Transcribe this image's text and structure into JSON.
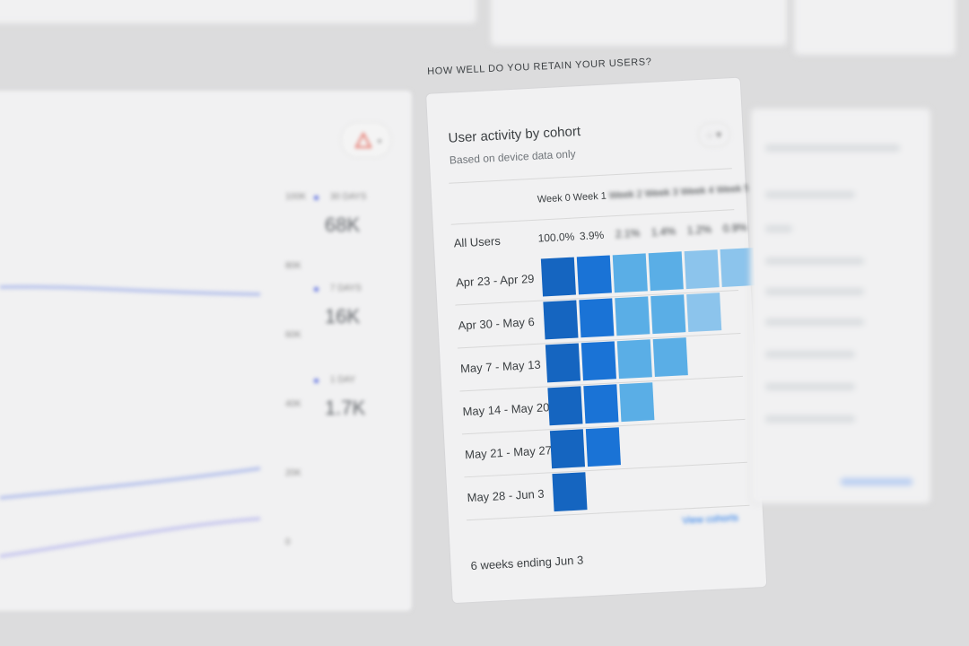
{
  "section_title": "HOW WELL DO YOU RETAIN YOUR USERS?",
  "cohort_card": {
    "title": "User activity by cohort",
    "subtitle": "Based on device data only",
    "device_icon": "device-selector-icon",
    "week_headers": [
      "Week 0",
      "Week 1",
      "Week 2",
      "Week 3",
      "Week 4",
      "Week 5"
    ],
    "all_users": {
      "label": "All Users",
      "values": [
        "100.0%",
        "3.9%",
        "2.1%",
        "1.4%",
        "1.2%",
        "0.9%"
      ]
    },
    "rows": [
      {
        "label": "Apr 23 - Apr 29",
        "cells": 6
      },
      {
        "label": "Apr 30 - May 6",
        "cells": 5
      },
      {
        "label": "May 7 - May 13",
        "cells": 4
      },
      {
        "label": "May 14 - May 20",
        "cells": 3
      },
      {
        "label": "May 21 - May 27",
        "cells": 2
      },
      {
        "label": "May 28 - Jun 3",
        "cells": 1
      }
    ],
    "cell_colors": [
      "#1565c0",
      "#1a73d6",
      "#5aaee6",
      "#5aaee6",
      "#8cc4ec",
      "#8cc4ec"
    ],
    "footer": "6 weeks ending Jun 3",
    "view_link": "View cohorts"
  },
  "active_users_card": {
    "warning_icon": "warning-triangle-icon",
    "y_ticks": [
      "100K",
      "80K",
      "60K",
      "40K",
      "20K",
      "0"
    ],
    "legend": [
      {
        "label": "30 DAYS",
        "value": "68K"
      },
      {
        "label": "7 DAYS",
        "value": "16K"
      },
      {
        "label": "1 DAY",
        "value": "1.7K"
      }
    ],
    "series_color": "#5b6ee1"
  }
}
